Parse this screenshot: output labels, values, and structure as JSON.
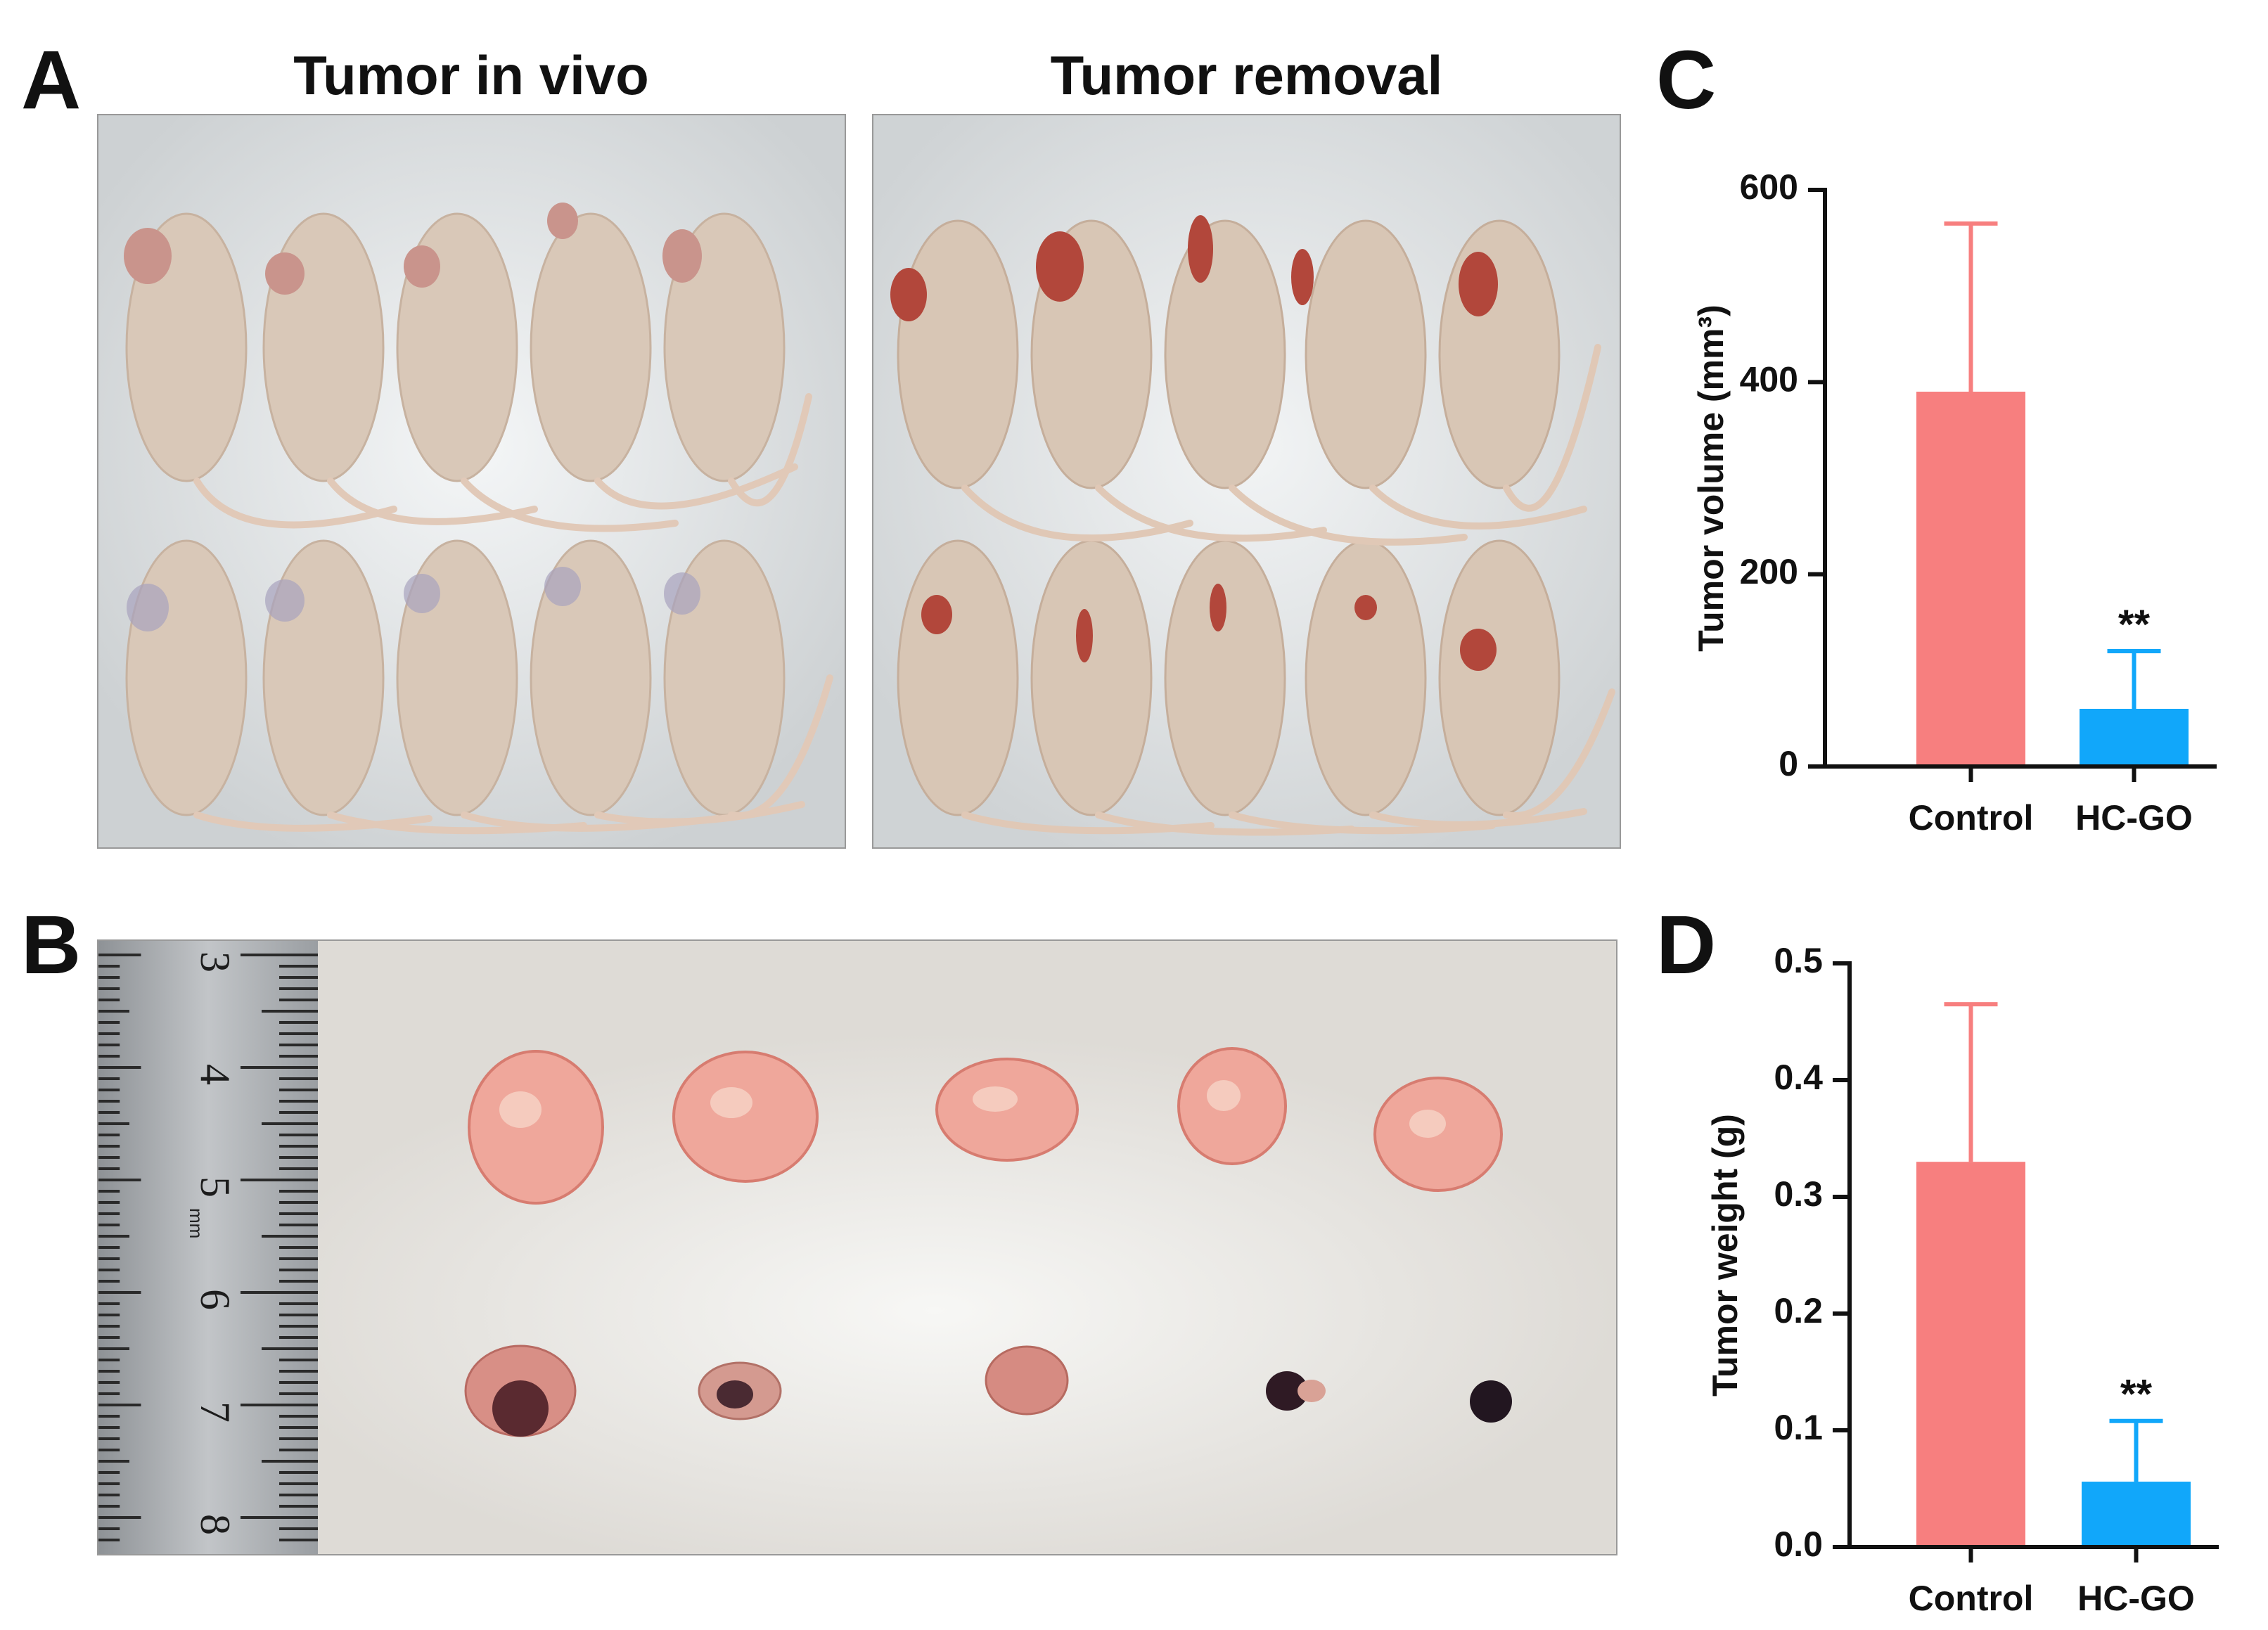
{
  "panels": {
    "A": {
      "letter": "A",
      "left_title": "Tumor in vivo",
      "right_title": "Tumor removal",
      "left_photo": "photograph of ten nude mice with subcutaneous tumors before removal",
      "right_photo": "photograph of ten nude mice after tumor removal"
    },
    "B": {
      "letter": "B",
      "photo": "photograph of excised tumors beside a metal ruler",
      "ruler_numbers": [
        "3",
        "4",
        "5",
        "6",
        "7",
        "8"
      ],
      "ruler_unit": "mm"
    },
    "C": {
      "letter": "C"
    },
    "D": {
      "letter": "D"
    }
  },
  "colors": {
    "control": "#F77F7F",
    "control_error": "#F77F7F",
    "hcgo": "#11A7FA",
    "hcgo_error": "#11A7FA",
    "axis": "#111111"
  },
  "chart_data": [
    {
      "type": "bar",
      "panel": "C",
      "categories": [
        "Control",
        "HC-GO"
      ],
      "values": [
        390,
        60
      ],
      "errors": [
        175,
        60
      ],
      "significance": [
        "",
        "**"
      ],
      "ylabel": "Tumor volume (mm³)",
      "xlabel": "",
      "ylim": [
        0,
        600
      ],
      "yticks": [
        "0",
        "200",
        "400",
        "600"
      ],
      "ytick_values": [
        0,
        200,
        400,
        600
      ]
    },
    {
      "type": "bar",
      "panel": "D",
      "categories": [
        "Control",
        "HC-GO"
      ],
      "values": [
        0.33,
        0.056
      ],
      "errors": [
        0.135,
        0.052
      ],
      "significance": [
        "",
        "**"
      ],
      "ylabel": "Tumor weight (g)",
      "xlabel": "",
      "ylim": [
        0,
        0.5
      ],
      "yticks": [
        "0.0",
        "0.1",
        "0.2",
        "0.3",
        "0.4",
        "0.5"
      ],
      "ytick_values": [
        0,
        0.1,
        0.2,
        0.3,
        0.4,
        0.5
      ]
    }
  ]
}
